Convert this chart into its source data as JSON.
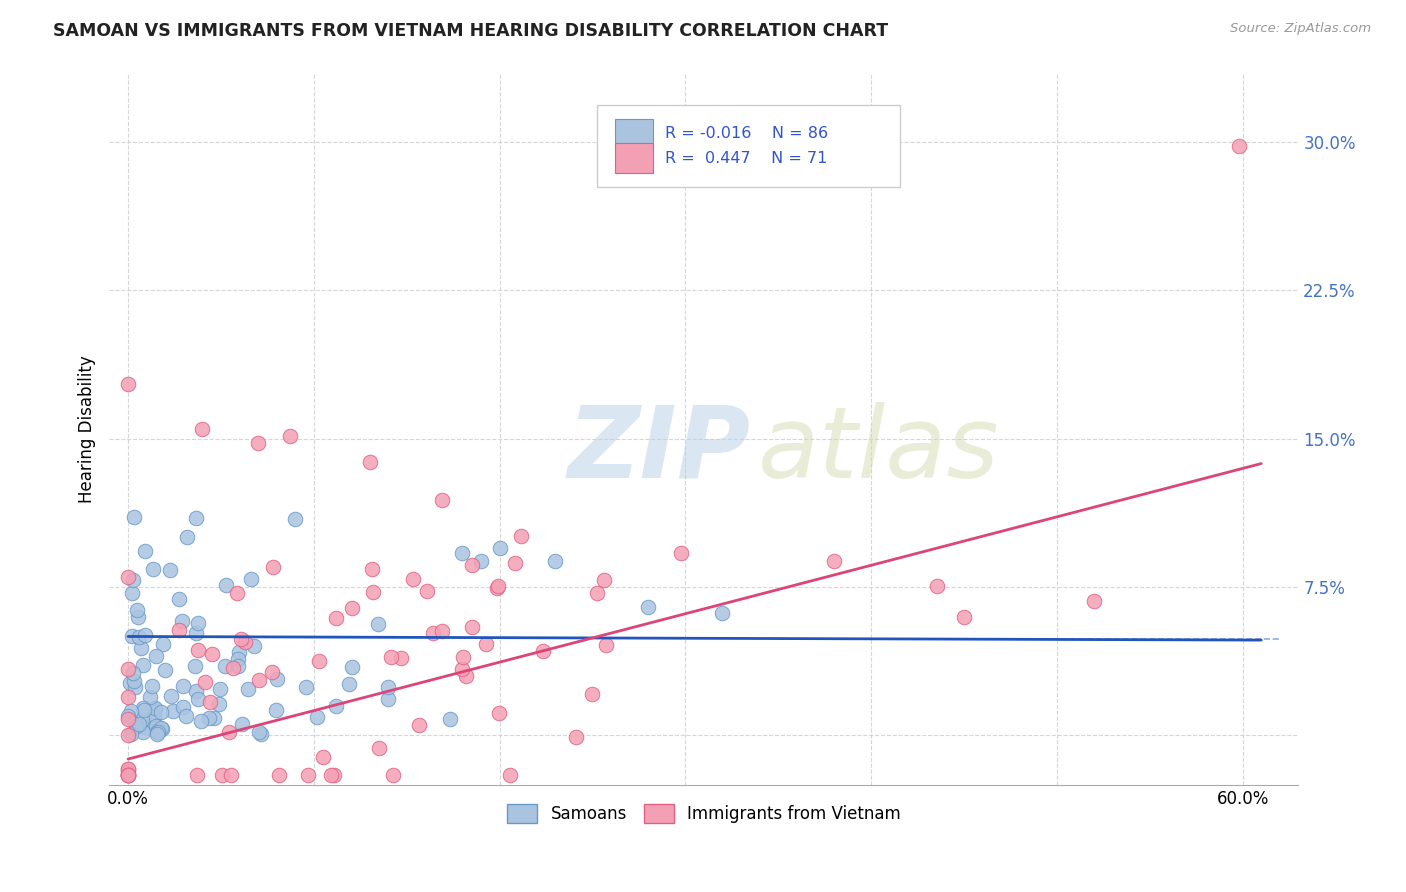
{
  "title": "SAMOAN VS IMMIGRANTS FROM VIETNAM HEARING DISABILITY CORRELATION CHART",
  "source": "Source: ZipAtlas.com",
  "xlim": [
    -0.01,
    0.63
  ],
  "ylim": [
    -0.025,
    0.335
  ],
  "samoans_color": "#aac4e0",
  "vietnam_color": "#f4a0b4",
  "samoans_edge": "#6699cc",
  "vietnam_edge": "#e06080",
  "trendline_samoan_color": "#2255bb",
  "trendline_vietnam_color": "#dd4477",
  "legend_label_samoan": "Samoans",
  "legend_label_vietnam": "Immigrants from Vietnam",
  "R_samoan": -0.016,
  "N_samoan": 86,
  "R_vietnam": 0.447,
  "N_vietnam": 71,
  "watermark_zip": "ZIP",
  "watermark_atlas": "atlas",
  "ylabel": "Hearing Disability",
  "background_color": "#ffffff",
  "grid_color": "#cccccc",
  "title_color": "#222222",
  "axis_label_color": "#4472c4",
  "seed": 42
}
